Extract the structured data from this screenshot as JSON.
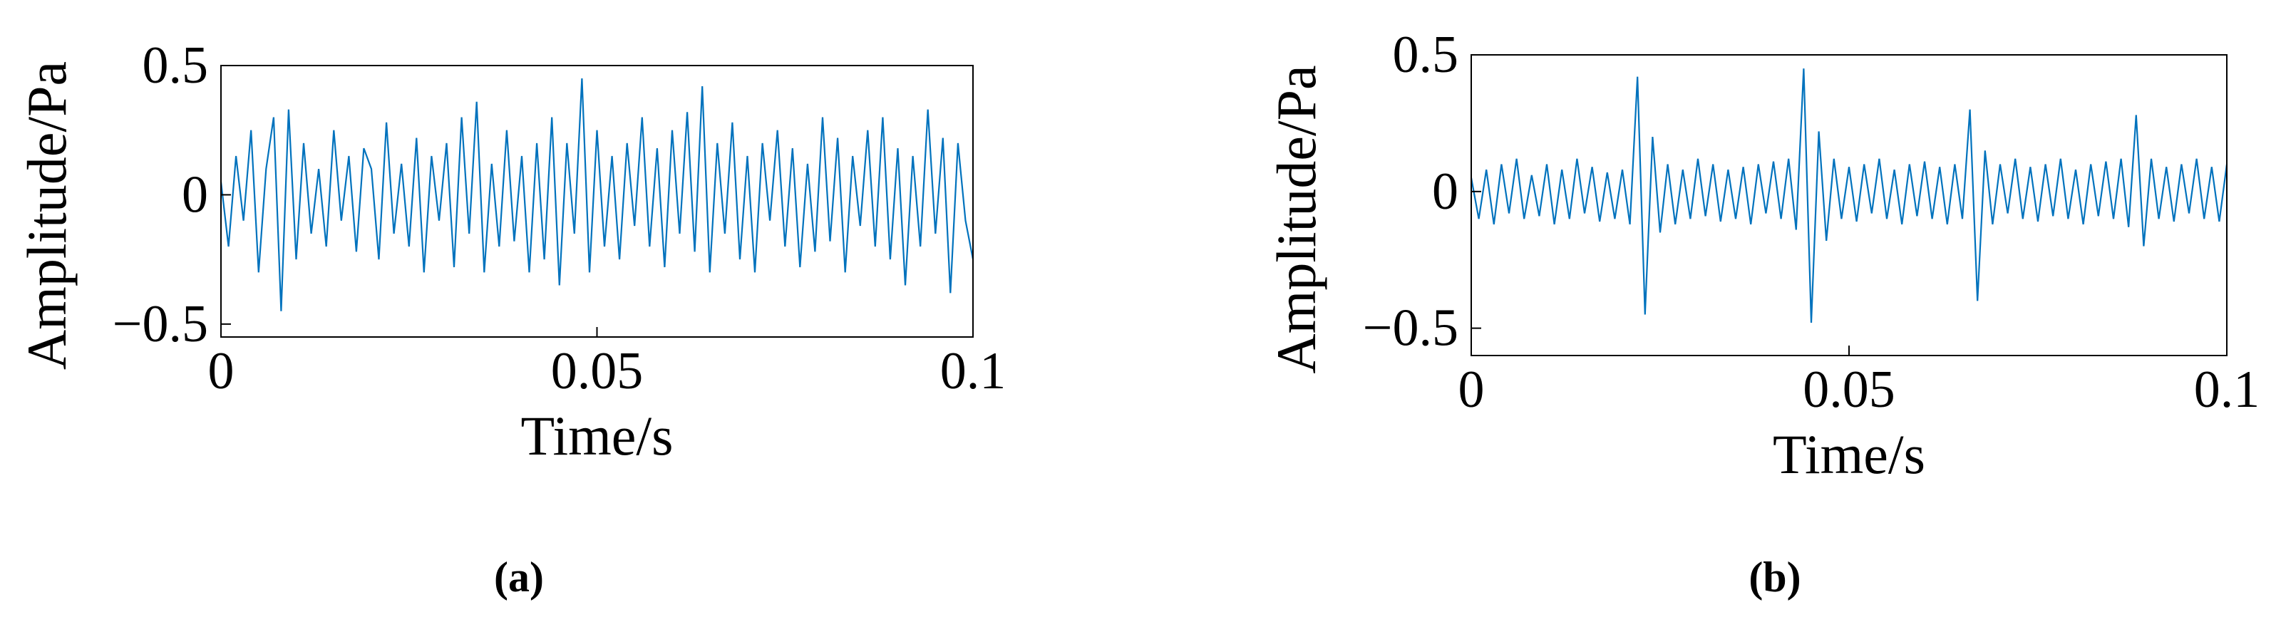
{
  "chart_data": [
    {
      "type": "line",
      "caption": "(a)",
      "xlabel": "Time/s",
      "ylabel": "Amplitude/Pa",
      "xlim": [
        0,
        0.1
      ],
      "ylim": [
        -0.55,
        0.5
      ],
      "xticks": [
        0,
        0.05,
        0.1
      ],
      "yticks": [
        {
          "value": -0.5,
          "label": "−0.5"
        },
        0,
        0.5
      ],
      "series": [
        {
          "color": "#0072bd",
          "x": [
            0,
            0.001,
            0.002,
            0.003,
            0.004,
            0.005,
            0.006,
            0.007,
            0.008,
            0.009,
            0.01,
            0.011,
            0.012,
            0.013,
            0.014,
            0.015,
            0.016,
            0.017,
            0.018,
            0.019,
            0.02,
            0.021,
            0.022,
            0.023,
            0.024,
            0.025,
            0.026,
            0.027,
            0.028,
            0.029,
            0.03,
            0.031,
            0.032,
            0.033,
            0.034,
            0.035,
            0.036,
            0.037,
            0.038,
            0.039,
            0.04,
            0.041,
            0.042,
            0.043,
            0.044,
            0.045,
            0.046,
            0.047,
            0.048,
            0.049,
            0.05,
            0.051,
            0.052,
            0.053,
            0.054,
            0.055,
            0.056,
            0.057,
            0.058,
            0.059,
            0.06,
            0.061,
            0.062,
            0.063,
            0.064,
            0.065,
            0.066,
            0.067,
            0.068,
            0.069,
            0.07,
            0.071,
            0.072,
            0.073,
            0.074,
            0.075,
            0.076,
            0.077,
            0.078,
            0.079,
            0.08,
            0.081,
            0.082,
            0.083,
            0.084,
            0.085,
            0.086,
            0.087,
            0.088,
            0.089,
            0.09,
            0.091,
            0.092,
            0.093,
            0.094,
            0.095,
            0.096,
            0.097,
            0.098,
            0.099,
            0.1
          ],
          "values": [
            0.05,
            -0.2,
            0.15,
            -0.1,
            0.25,
            -0.3,
            0.1,
            0.3,
            -0.45,
            0.33,
            -0.25,
            0.2,
            -0.15,
            0.1,
            -0.2,
            0.25,
            -0.1,
            0.15,
            -0.22,
            0.18,
            0.1,
            -0.25,
            0.28,
            -0.15,
            0.12,
            -0.2,
            0.22,
            -0.3,
            0.15,
            -0.1,
            0.2,
            -0.28,
            0.3,
            -0.15,
            0.36,
            -0.3,
            0.12,
            -0.2,
            0.25,
            -0.18,
            0.15,
            -0.3,
            0.2,
            -0.25,
            0.3,
            -0.35,
            0.2,
            -0.15,
            0.45,
            -0.3,
            0.25,
            -0.2,
            0.15,
            -0.25,
            0.2,
            -0.12,
            0.3,
            -0.2,
            0.18,
            -0.28,
            0.25,
            -0.15,
            0.32,
            -0.22,
            0.42,
            -0.3,
            0.2,
            -0.15,
            0.28,
            -0.25,
            0.15,
            -0.3,
            0.2,
            -0.1,
            0.25,
            -0.2,
            0.18,
            -0.28,
            0.12,
            -0.22,
            0.3,
            -0.18,
            0.22,
            -0.3,
            0.15,
            -0.12,
            0.25,
            -0.2,
            0.3,
            -0.25,
            0.18,
            -0.35,
            0.15,
            -0.2,
            0.33,
            -0.15,
            0.22,
            -0.38,
            0.2,
            -0.1,
            -0.25
          ]
        }
      ]
    },
    {
      "type": "line",
      "caption": "(b)",
      "xlabel": "Time/s",
      "ylabel": "Amplitude/Pa",
      "xlim": [
        0,
        0.1
      ],
      "ylim": [
        -0.6,
        0.5
      ],
      "xticks": [
        0,
        0.05,
        0.1
      ],
      "yticks": [
        {
          "value": -0.5,
          "label": "−0.5"
        },
        0,
        0.5
      ],
      "series": [
        {
          "color": "#0072bd",
          "x": [
            0,
            0.001,
            0.002,
            0.003,
            0.004,
            0.005,
            0.006,
            0.007,
            0.008,
            0.009,
            0.01,
            0.011,
            0.012,
            0.013,
            0.014,
            0.015,
            0.016,
            0.017,
            0.018,
            0.019,
            0.02,
            0.021,
            0.022,
            0.023,
            0.024,
            0.025,
            0.026,
            0.027,
            0.028,
            0.029,
            0.03,
            0.031,
            0.032,
            0.033,
            0.034,
            0.035,
            0.036,
            0.037,
            0.038,
            0.039,
            0.04,
            0.041,
            0.042,
            0.043,
            0.044,
            0.045,
            0.046,
            0.047,
            0.048,
            0.049,
            0.05,
            0.051,
            0.052,
            0.053,
            0.054,
            0.055,
            0.056,
            0.057,
            0.058,
            0.059,
            0.06,
            0.061,
            0.062,
            0.063,
            0.064,
            0.065,
            0.066,
            0.067,
            0.068,
            0.069,
            0.07,
            0.071,
            0.072,
            0.073,
            0.074,
            0.075,
            0.076,
            0.077,
            0.078,
            0.079,
            0.08,
            0.081,
            0.082,
            0.083,
            0.084,
            0.085,
            0.086,
            0.087,
            0.088,
            0.089,
            0.09,
            0.091,
            0.092,
            0.093,
            0.094,
            0.095,
            0.096,
            0.097,
            0.098,
            0.099,
            0.1
          ],
          "values": [
            0.05,
            -0.1,
            0.08,
            -0.12,
            0.1,
            -0.08,
            0.12,
            -0.1,
            0.06,
            -0.09,
            0.1,
            -0.12,
            0.08,
            -0.1,
            0.12,
            -0.08,
            0.09,
            -0.11,
            0.07,
            -0.1,
            0.08,
            -0.12,
            0.42,
            -0.45,
            0.2,
            -0.15,
            0.1,
            -0.12,
            0.08,
            -0.1,
            0.12,
            -0.09,
            0.1,
            -0.11,
            0.08,
            -0.1,
            0.09,
            -0.12,
            0.1,
            -0.08,
            0.11,
            -0.1,
            0.12,
            -0.14,
            0.45,
            -0.48,
            0.22,
            -0.18,
            0.12,
            -0.1,
            0.09,
            -0.11,
            0.1,
            -0.08,
            0.12,
            -0.1,
            0.08,
            -0.12,
            0.1,
            -0.09,
            0.11,
            -0.1,
            0.09,
            -0.12,
            0.1,
            -0.1,
            0.3,
            -0.4,
            0.15,
            -0.12,
            0.1,
            -0.08,
            0.12,
            -0.1,
            0.09,
            -0.11,
            0.1,
            -0.09,
            0.12,
            -0.1,
            0.08,
            -0.12,
            0.1,
            -0.09,
            0.11,
            -0.1,
            0.12,
            -0.13,
            0.28,
            -0.2,
            0.12,
            -0.1,
            0.09,
            -0.11,
            0.1,
            -0.08,
            0.12,
            -0.1,
            0.09,
            -0.11,
            0.1
          ]
        }
      ]
    }
  ]
}
